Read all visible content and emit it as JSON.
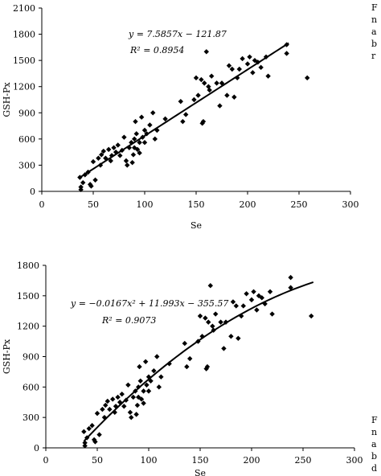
{
  "chart_data": [
    {
      "type": "scatter",
      "xlabel": "Se",
      "ylabel": "GSH-Px",
      "xlim": [
        0,
        300
      ],
      "ylim": [
        0,
        2100
      ],
      "xticks": [
        0,
        50,
        100,
        150,
        200,
        250,
        300
      ],
      "yticks": [
        0,
        300,
        600,
        900,
        1200,
        1500,
        1800,
        2100
      ],
      "equation": "y = 7.5857x − 121.87",
      "r2_label": "R² = 0.8954",
      "fit": {
        "kind": "linear",
        "coef": [
          7.5857,
          -121.87
        ],
        "x_range": [
          37,
          240
        ]
      },
      "points": [
        [
          37,
          160
        ],
        [
          38,
          50
        ],
        [
          38,
          20
        ],
        [
          40,
          100
        ],
        [
          42,
          190
        ],
        [
          45,
          220
        ],
        [
          47,
          80
        ],
        [
          48,
          60
        ],
        [
          50,
          340
        ],
        [
          52,
          130
        ],
        [
          55,
          380
        ],
        [
          57,
          300
        ],
        [
          58,
          420
        ],
        [
          60,
          460
        ],
        [
          62,
          380
        ],
        [
          65,
          480
        ],
        [
          67,
          350
        ],
        [
          68,
          410
        ],
        [
          70,
          500
        ],
        [
          72,
          450
        ],
        [
          74,
          530
        ],
        [
          76,
          410
        ],
        [
          78,
          470
        ],
        [
          80,
          620
        ],
        [
          82,
          350
        ],
        [
          83,
          300
        ],
        [
          85,
          500
        ],
        [
          87,
          560
        ],
        [
          88,
          330
        ],
        [
          89,
          420
        ],
        [
          90,
          500
        ],
        [
          90,
          600
        ],
        [
          91,
          800
        ],
        [
          92,
          660
        ],
        [
          93,
          480
        ],
        [
          95,
          440
        ],
        [
          95,
          560
        ],
        [
          97,
          850
        ],
        [
          98,
          620
        ],
        [
          100,
          560
        ],
        [
          100,
          700
        ],
        [
          102,
          660
        ],
        [
          105,
          760
        ],
        [
          108,
          900
        ],
        [
          110,
          600
        ],
        [
          112,
          700
        ],
        [
          120,
          830
        ],
        [
          135,
          1030
        ],
        [
          137,
          800
        ],
        [
          140,
          880
        ],
        [
          148,
          1050
        ],
        [
          150,
          1300
        ],
        [
          152,
          1100
        ],
        [
          155,
          1280
        ],
        [
          156,
          780
        ],
        [
          157,
          800
        ],
        [
          158,
          1240
        ],
        [
          160,
          1600
        ],
        [
          162,
          1200
        ],
        [
          163,
          1160
        ],
        [
          165,
          1320
        ],
        [
          170,
          1240
        ],
        [
          173,
          980
        ],
        [
          175,
          1240
        ],
        [
          180,
          1100
        ],
        [
          182,
          1440
        ],
        [
          185,
          1400
        ],
        [
          187,
          1080
        ],
        [
          190,
          1300
        ],
        [
          192,
          1400
        ],
        [
          195,
          1520
        ],
        [
          200,
          1460
        ],
        [
          202,
          1540
        ],
        [
          205,
          1360
        ],
        [
          207,
          1500
        ],
        [
          210,
          1480
        ],
        [
          213,
          1420
        ],
        [
          218,
          1540
        ],
        [
          220,
          1320
        ],
        [
          238,
          1680
        ],
        [
          238,
          1580
        ],
        [
          258,
          1300
        ]
      ]
    },
    {
      "type": "scatter",
      "xlabel": "Se",
      "ylabel": "GSH-Px",
      "xlim": [
        0,
        300
      ],
      "ylim": [
        0,
        1800
      ],
      "xticks": [
        0,
        50,
        100,
        150,
        200,
        250,
        300
      ],
      "yticks": [
        0,
        300,
        600,
        900,
        1200,
        1500,
        1800
      ],
      "equation": "y = −0.0167x² + 11.993x − 355.57",
      "r2_label": "R² = 0.9073",
      "fit": {
        "kind": "quadratic",
        "coef": [
          -0.0167,
          11.993,
          -355.57
        ],
        "x_range": [
          37,
          260
        ]
      },
      "points": [
        [
          37,
          160
        ],
        [
          38,
          50
        ],
        [
          38,
          20
        ],
        [
          40,
          100
        ],
        [
          42,
          190
        ],
        [
          45,
          220
        ],
        [
          47,
          80
        ],
        [
          48,
          60
        ],
        [
          50,
          340
        ],
        [
          52,
          130
        ],
        [
          55,
          380
        ],
        [
          57,
          300
        ],
        [
          58,
          420
        ],
        [
          60,
          460
        ],
        [
          62,
          380
        ],
        [
          65,
          480
        ],
        [
          67,
          350
        ],
        [
          68,
          410
        ],
        [
          70,
          500
        ],
        [
          72,
          450
        ],
        [
          74,
          530
        ],
        [
          76,
          410
        ],
        [
          78,
          470
        ],
        [
          80,
          620
        ],
        [
          82,
          350
        ],
        [
          83,
          300
        ],
        [
          85,
          500
        ],
        [
          87,
          560
        ],
        [
          88,
          330
        ],
        [
          89,
          420
        ],
        [
          90,
          500
        ],
        [
          90,
          600
        ],
        [
          91,
          800
        ],
        [
          92,
          660
        ],
        [
          93,
          480
        ],
        [
          95,
          440
        ],
        [
          95,
          560
        ],
        [
          97,
          850
        ],
        [
          98,
          620
        ],
        [
          100,
          560
        ],
        [
          100,
          700
        ],
        [
          102,
          660
        ],
        [
          105,
          760
        ],
        [
          108,
          900
        ],
        [
          110,
          600
        ],
        [
          112,
          700
        ],
        [
          120,
          830
        ],
        [
          135,
          1030
        ],
        [
          137,
          800
        ],
        [
          140,
          880
        ],
        [
          148,
          1050
        ],
        [
          150,
          1300
        ],
        [
          152,
          1100
        ],
        [
          155,
          1280
        ],
        [
          156,
          780
        ],
        [
          157,
          800
        ],
        [
          158,
          1240
        ],
        [
          160,
          1600
        ],
        [
          162,
          1200
        ],
        [
          163,
          1160
        ],
        [
          165,
          1320
        ],
        [
          170,
          1240
        ],
        [
          173,
          980
        ],
        [
          175,
          1240
        ],
        [
          180,
          1100
        ],
        [
          182,
          1440
        ],
        [
          185,
          1400
        ],
        [
          187,
          1080
        ],
        [
          190,
          1300
        ],
        [
          192,
          1400
        ],
        [
          195,
          1520
        ],
        [
          200,
          1460
        ],
        [
          202,
          1540
        ],
        [
          205,
          1360
        ],
        [
          207,
          1500
        ],
        [
          210,
          1480
        ],
        [
          213,
          1420
        ],
        [
          218,
          1540
        ],
        [
          220,
          1320
        ],
        [
          238,
          1680
        ],
        [
          238,
          1580
        ],
        [
          258,
          1300
        ]
      ]
    }
  ],
  "side_text_top": [
    "F",
    "n",
    "a",
    "b",
    "r"
  ],
  "side_text_bottom": [
    "F",
    "n",
    "a",
    "b",
    "d"
  ]
}
